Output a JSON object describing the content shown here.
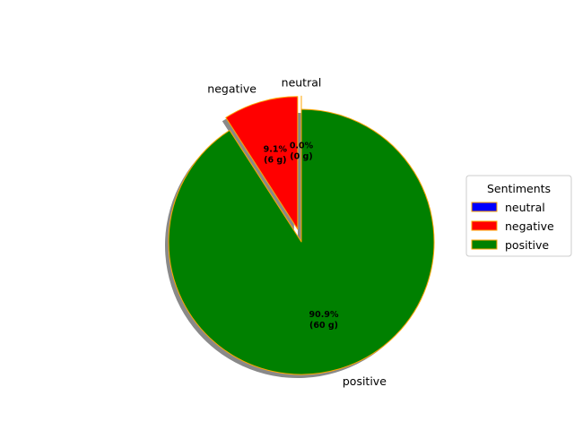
{
  "chart_data": {
    "type": "pie",
    "categories": [
      "neutral",
      "negative",
      "positive"
    ],
    "values": [
      0,
      6,
      60
    ],
    "unit": "g",
    "percent_labels": [
      "0.0%\n(0 g)",
      "9.1%\n(6 g)",
      "90.9%\n(60 g)"
    ],
    "colors": [
      "#0000ff",
      "#ff0000",
      "#008000"
    ],
    "edge_color": "#ffa500",
    "explode": [
      0.1,
      0.1,
      0
    ],
    "start_angle_deg": 90,
    "shadow": true,
    "legend": {
      "title": "Sentiments",
      "placement": "center-right",
      "entries": [
        "neutral",
        "negative",
        "positive"
      ]
    }
  }
}
